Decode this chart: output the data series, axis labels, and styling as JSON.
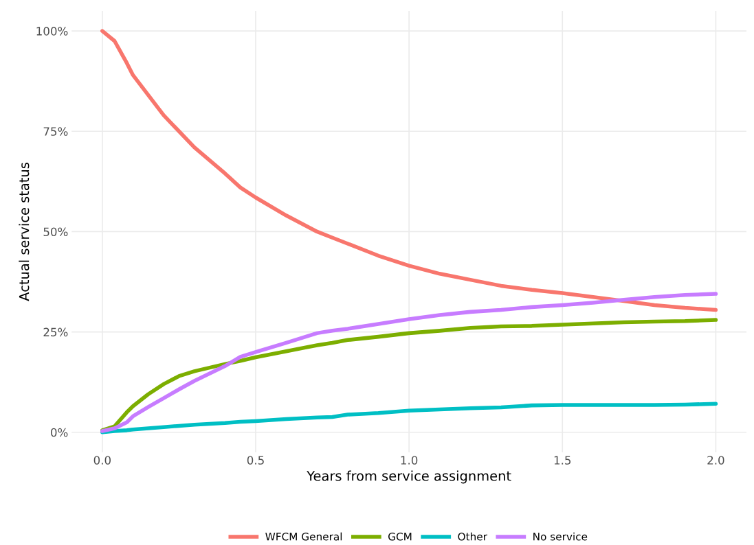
{
  "chart_data": {
    "type": "line",
    "xlabel": "Years from service assignment",
    "ylabel": "Actual service status",
    "xlim": [
      -0.1,
      2.1
    ],
    "xticks": [
      {
        "value": 0,
        "label": "0.0"
      },
      {
        "value": 0.5,
        "label": "0.5"
      },
      {
        "value": 1,
        "label": "1.0"
      },
      {
        "value": 1.5,
        "label": "1.5"
      },
      {
        "value": 2,
        "label": "2.0"
      }
    ],
    "ylim": [
      -5,
      105
    ],
    "yticks": [
      {
        "value": 0,
        "label": "0%"
      },
      {
        "value": 25,
        "label": "25%"
      },
      {
        "value": 50,
        "label": "50%"
      },
      {
        "value": 75,
        "label": "75%"
      },
      {
        "value": 100,
        "label": "100%"
      }
    ],
    "grid": true,
    "legend": "bottom",
    "x": [
      0,
      0.04,
      0.08,
      0.1,
      0.15,
      0.2,
      0.25,
      0.3,
      0.4,
      0.45,
      0.5,
      0.6,
      0.7,
      0.75,
      0.8,
      0.9,
      1.0,
      1.1,
      1.2,
      1.3,
      1.4,
      1.5,
      1.6,
      1.7,
      1.8,
      1.9,
      2.0
    ],
    "series": [
      {
        "name": "WFCM General",
        "color": "#f8766d",
        "values": [
          100,
          97.5,
          92,
          89,
          84,
          79,
          75,
          71,
          64.5,
          61,
          58.5,
          54,
          50,
          48.5,
          47,
          44,
          41.5,
          39.5,
          38,
          36.5,
          35.5,
          34.7,
          33.7,
          32.7,
          31.7,
          31,
          30.5
        ]
      },
      {
        "name": "GCM",
        "color": "#7cae00",
        "values": [
          0.5,
          1.5,
          5,
          6.5,
          9.5,
          12,
          14,
          15.2,
          17,
          17.8,
          18.7,
          20.2,
          21.7,
          22.3,
          23,
          23.8,
          24.7,
          25.3,
          26,
          26.4,
          26.5,
          26.8,
          27.1,
          27.4,
          27.6,
          27.7,
          28
        ]
      },
      {
        "name": "Other",
        "color": "#00bfc4",
        "values": [
          0,
          0.3,
          0.5,
          0.7,
          1.0,
          1.3,
          1.6,
          1.9,
          2.3,
          2.6,
          2.8,
          3.3,
          3.7,
          3.8,
          4.4,
          4.8,
          5.4,
          5.7,
          6.0,
          6.2,
          6.7,
          6.8,
          6.8,
          6.8,
          6.8,
          6.9,
          7.1
        ]
      },
      {
        "name": "No service",
        "color": "#c77cff",
        "values": [
          0.3,
          1,
          2.5,
          4,
          6.3,
          8.5,
          10.7,
          12.8,
          16.5,
          18.8,
          20,
          22.3,
          24.7,
          25.3,
          25.8,
          27,
          28.2,
          29.2,
          30,
          30.5,
          31.2,
          31.7,
          32.3,
          33,
          33.7,
          34.2,
          34.5
        ]
      }
    ]
  }
}
